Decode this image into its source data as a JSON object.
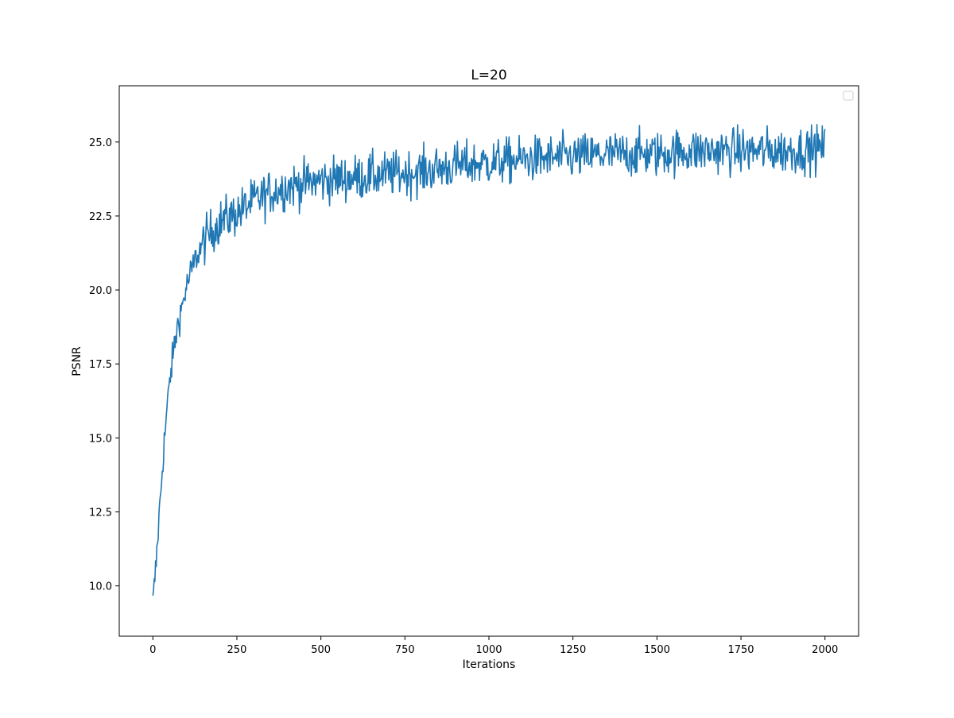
{
  "chart_data": {
    "type": "line",
    "title": "L=20",
    "xlabel": "Iterations",
    "ylabel": "PSNR",
    "xlim": [
      -100,
      2100
    ],
    "ylim": [
      8.3,
      26.9
    ],
    "x_ticks": [
      0,
      250,
      500,
      750,
      1000,
      1250,
      1500,
      1750,
      2000
    ],
    "x_tick_labels": [
      "0",
      "250",
      "500",
      "750",
      "1000",
      "1250",
      "1500",
      "1750",
      "2000"
    ],
    "y_ticks": [
      10.0,
      12.5,
      15.0,
      17.5,
      20.0,
      22.5,
      25.0
    ],
    "y_tick_labels": [
      "10.0",
      "12.5",
      "15.0",
      "17.5",
      "20.0",
      "22.5",
      "25.0"
    ],
    "grid": false,
    "legend": {
      "placement": "top-right",
      "entries": []
    },
    "series": [
      {
        "color": "#1f77b4",
        "noise_amplitude": 0.55,
        "x": [
          0,
          10,
          20,
          30,
          40,
          50,
          60,
          75,
          90,
          100,
          125,
          150,
          175,
          200,
          250,
          300,
          350,
          400,
          500,
          600,
          700,
          800,
          900,
          1000,
          1100,
          1250,
          1400,
          1500,
          1600,
          1750,
          1900,
          2000
        ],
        "y": [
          9.4,
          10.8,
          12.6,
          14.3,
          15.7,
          16.9,
          17.8,
          18.9,
          19.6,
          20.1,
          21.0,
          21.6,
          22.0,
          22.3,
          22.6,
          23.0,
          23.3,
          23.5,
          23.7,
          23.8,
          23.9,
          24.0,
          24.2,
          24.3,
          24.4,
          24.5,
          24.6,
          24.6,
          24.7,
          24.7,
          24.7,
          24.8
        ]
      }
    ]
  }
}
